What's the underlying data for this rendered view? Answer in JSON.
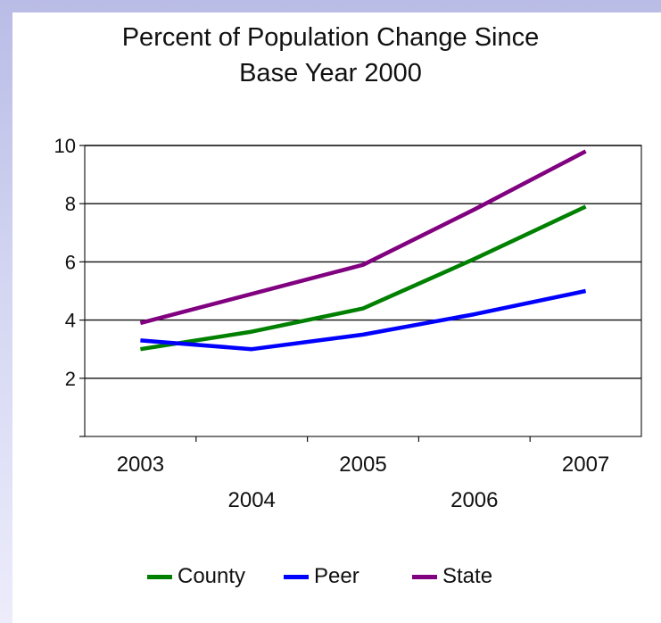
{
  "chart_data": {
    "type": "line",
    "title_lines": [
      "Percent of Population Change Since",
      "Base Year 2000"
    ],
    "x": [
      "2003",
      "2004",
      "2005",
      "2006",
      "2007"
    ],
    "ylim": [
      0,
      10
    ],
    "yticks": [
      2,
      4,
      6,
      8,
      10
    ],
    "grid": true,
    "legend_position": "bottom",
    "series": [
      {
        "name": "County",
        "color": "#008000",
        "values": [
          3.0,
          3.6,
          4.4,
          6.1,
          7.9
        ]
      },
      {
        "name": "Peer",
        "color": "#0000ff",
        "values": [
          3.3,
          3.0,
          3.5,
          4.2,
          5.0
        ]
      },
      {
        "name": "State",
        "color": "#800080",
        "values": [
          3.9,
          4.9,
          5.9,
          7.8,
          9.8
        ]
      }
    ]
  }
}
